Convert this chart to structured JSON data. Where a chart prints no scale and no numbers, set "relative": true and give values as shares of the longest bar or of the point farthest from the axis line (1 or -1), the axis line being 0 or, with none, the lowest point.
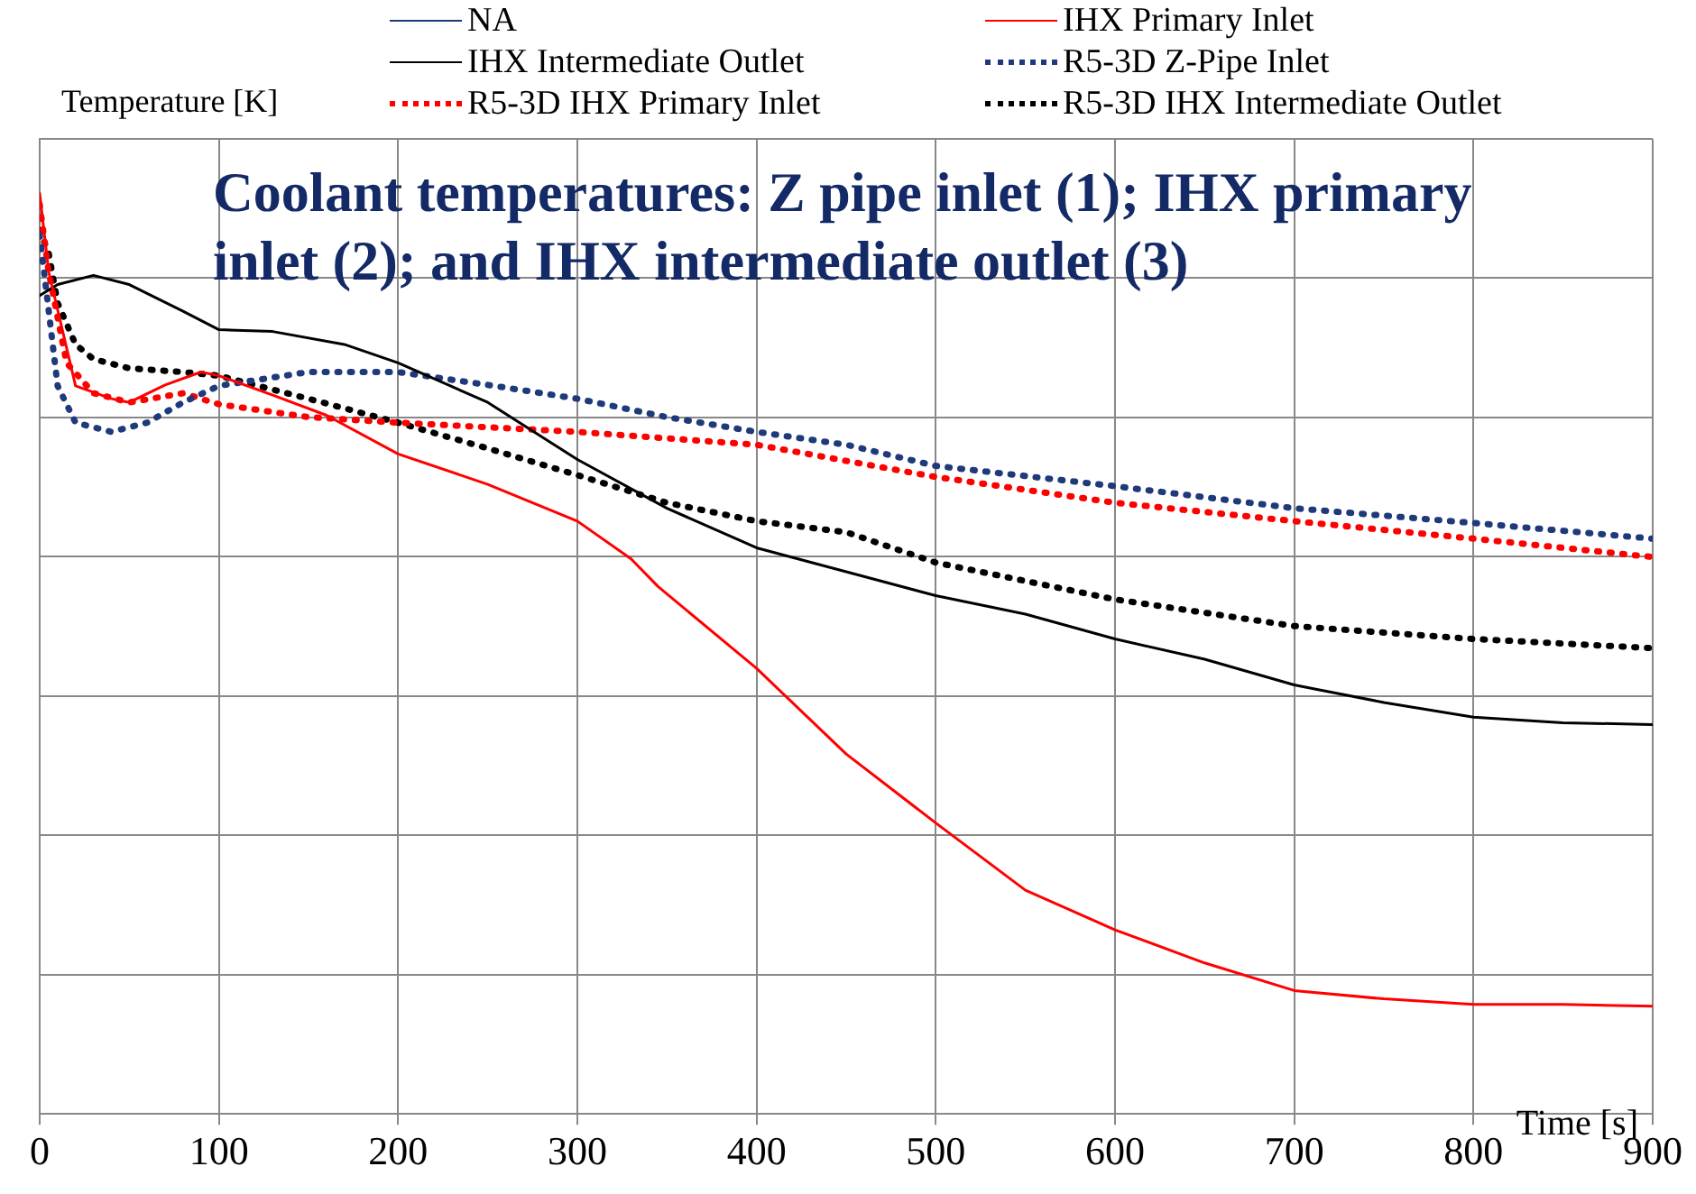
{
  "chart_data": {
    "type": "line",
    "title": "Coolant temperatures: Z pipe inlet (1); IHX primary inlet (2); and IHX intermediate outlet (3)",
    "xlabel": "Time [s]",
    "ylabel": "Temperature [K]",
    "relative": true,
    "xlim": [
      0,
      900
    ],
    "xticks": [
      0,
      100,
      200,
      300,
      400,
      500,
      600,
      700,
      800,
      900
    ],
    "grid": true,
    "legend": "top",
    "marker": "none",
    "series": [
      {
        "name": "NA",
        "color": "#1f3a7a",
        "line_style": "solid"
      },
      {
        "name": "IHX Primary Inlet",
        "color": "#ff0000",
        "line_style": "solid",
        "x": [
          0,
          5,
          20,
          40,
          50,
          70,
          90,
          100,
          130,
          160,
          200,
          250,
          300,
          330,
          345,
          400,
          450,
          500,
          550,
          600,
          650,
          700,
          750,
          800,
          850,
          900
        ],
        "values": [
          1.0,
          0.915,
          0.791,
          0.777,
          0.773,
          0.792,
          0.806,
          0.802,
          0.781,
          0.759,
          0.717,
          0.684,
          0.644,
          0.603,
          0.573,
          0.484,
          0.391,
          0.316,
          0.243,
          0.2,
          0.164,
          0.134,
          0.125,
          0.119,
          0.119,
          0.117
        ]
      },
      {
        "name": "IHX Intermediate Outlet",
        "color": "#000000",
        "line_style": "solid",
        "x": [
          0,
          10,
          30,
          50,
          80,
          100,
          130,
          170,
          200,
          250,
          300,
          350,
          400,
          450,
          500,
          550,
          600,
          650,
          700,
          750,
          800,
          850,
          900
        ],
        "values": [
          0.889,
          0.901,
          0.911,
          0.901,
          0.872,
          0.852,
          0.85,
          0.836,
          0.816,
          0.773,
          0.711,
          0.658,
          0.615,
          0.589,
          0.563,
          0.543,
          0.516,
          0.494,
          0.466,
          0.447,
          0.431,
          0.425,
          0.423
        ]
      },
      {
        "name": "R5-3D Z-Pipe Inlet",
        "color": "#1f3a7a",
        "line_style": "dotted",
        "x": [
          0,
          10,
          20,
          40,
          60,
          80,
          100,
          150,
          200,
          250,
          300,
          350,
          400,
          450,
          500,
          600,
          700,
          800,
          900
        ],
        "values": [
          0.955,
          0.791,
          0.751,
          0.741,
          0.751,
          0.773,
          0.791,
          0.806,
          0.806,
          0.792,
          0.777,
          0.757,
          0.741,
          0.727,
          0.704,
          0.682,
          0.658,
          0.642,
          0.625
        ]
      },
      {
        "name": "R5-3D IHX Primary Inlet",
        "color": "#ff0000",
        "line_style": "dotted",
        "x": [
          0,
          5,
          15,
          30,
          50,
          80,
          100,
          150,
          200,
          300,
          400,
          500,
          600,
          700,
          800,
          900
        ],
        "values": [
          0.988,
          0.915,
          0.816,
          0.783,
          0.773,
          0.783,
          0.771,
          0.757,
          0.751,
          0.741,
          0.727,
          0.692,
          0.664,
          0.644,
          0.625,
          0.605
        ]
      },
      {
        "name": "R5-3D IHX Intermediate Outlet",
        "color": "#000000",
        "line_style": "dotted",
        "x": [
          0,
          5,
          10,
          20,
          30,
          50,
          80,
          100,
          150,
          200,
          250,
          300,
          350,
          400,
          450,
          500,
          550,
          600,
          700,
          800,
          900
        ],
        "values": [
          0.96,
          0.935,
          0.881,
          0.836,
          0.82,
          0.81,
          0.806,
          0.802,
          0.777,
          0.751,
          0.723,
          0.694,
          0.664,
          0.644,
          0.632,
          0.599,
          0.579,
          0.559,
          0.53,
          0.516,
          0.506
        ]
      }
    ]
  }
}
